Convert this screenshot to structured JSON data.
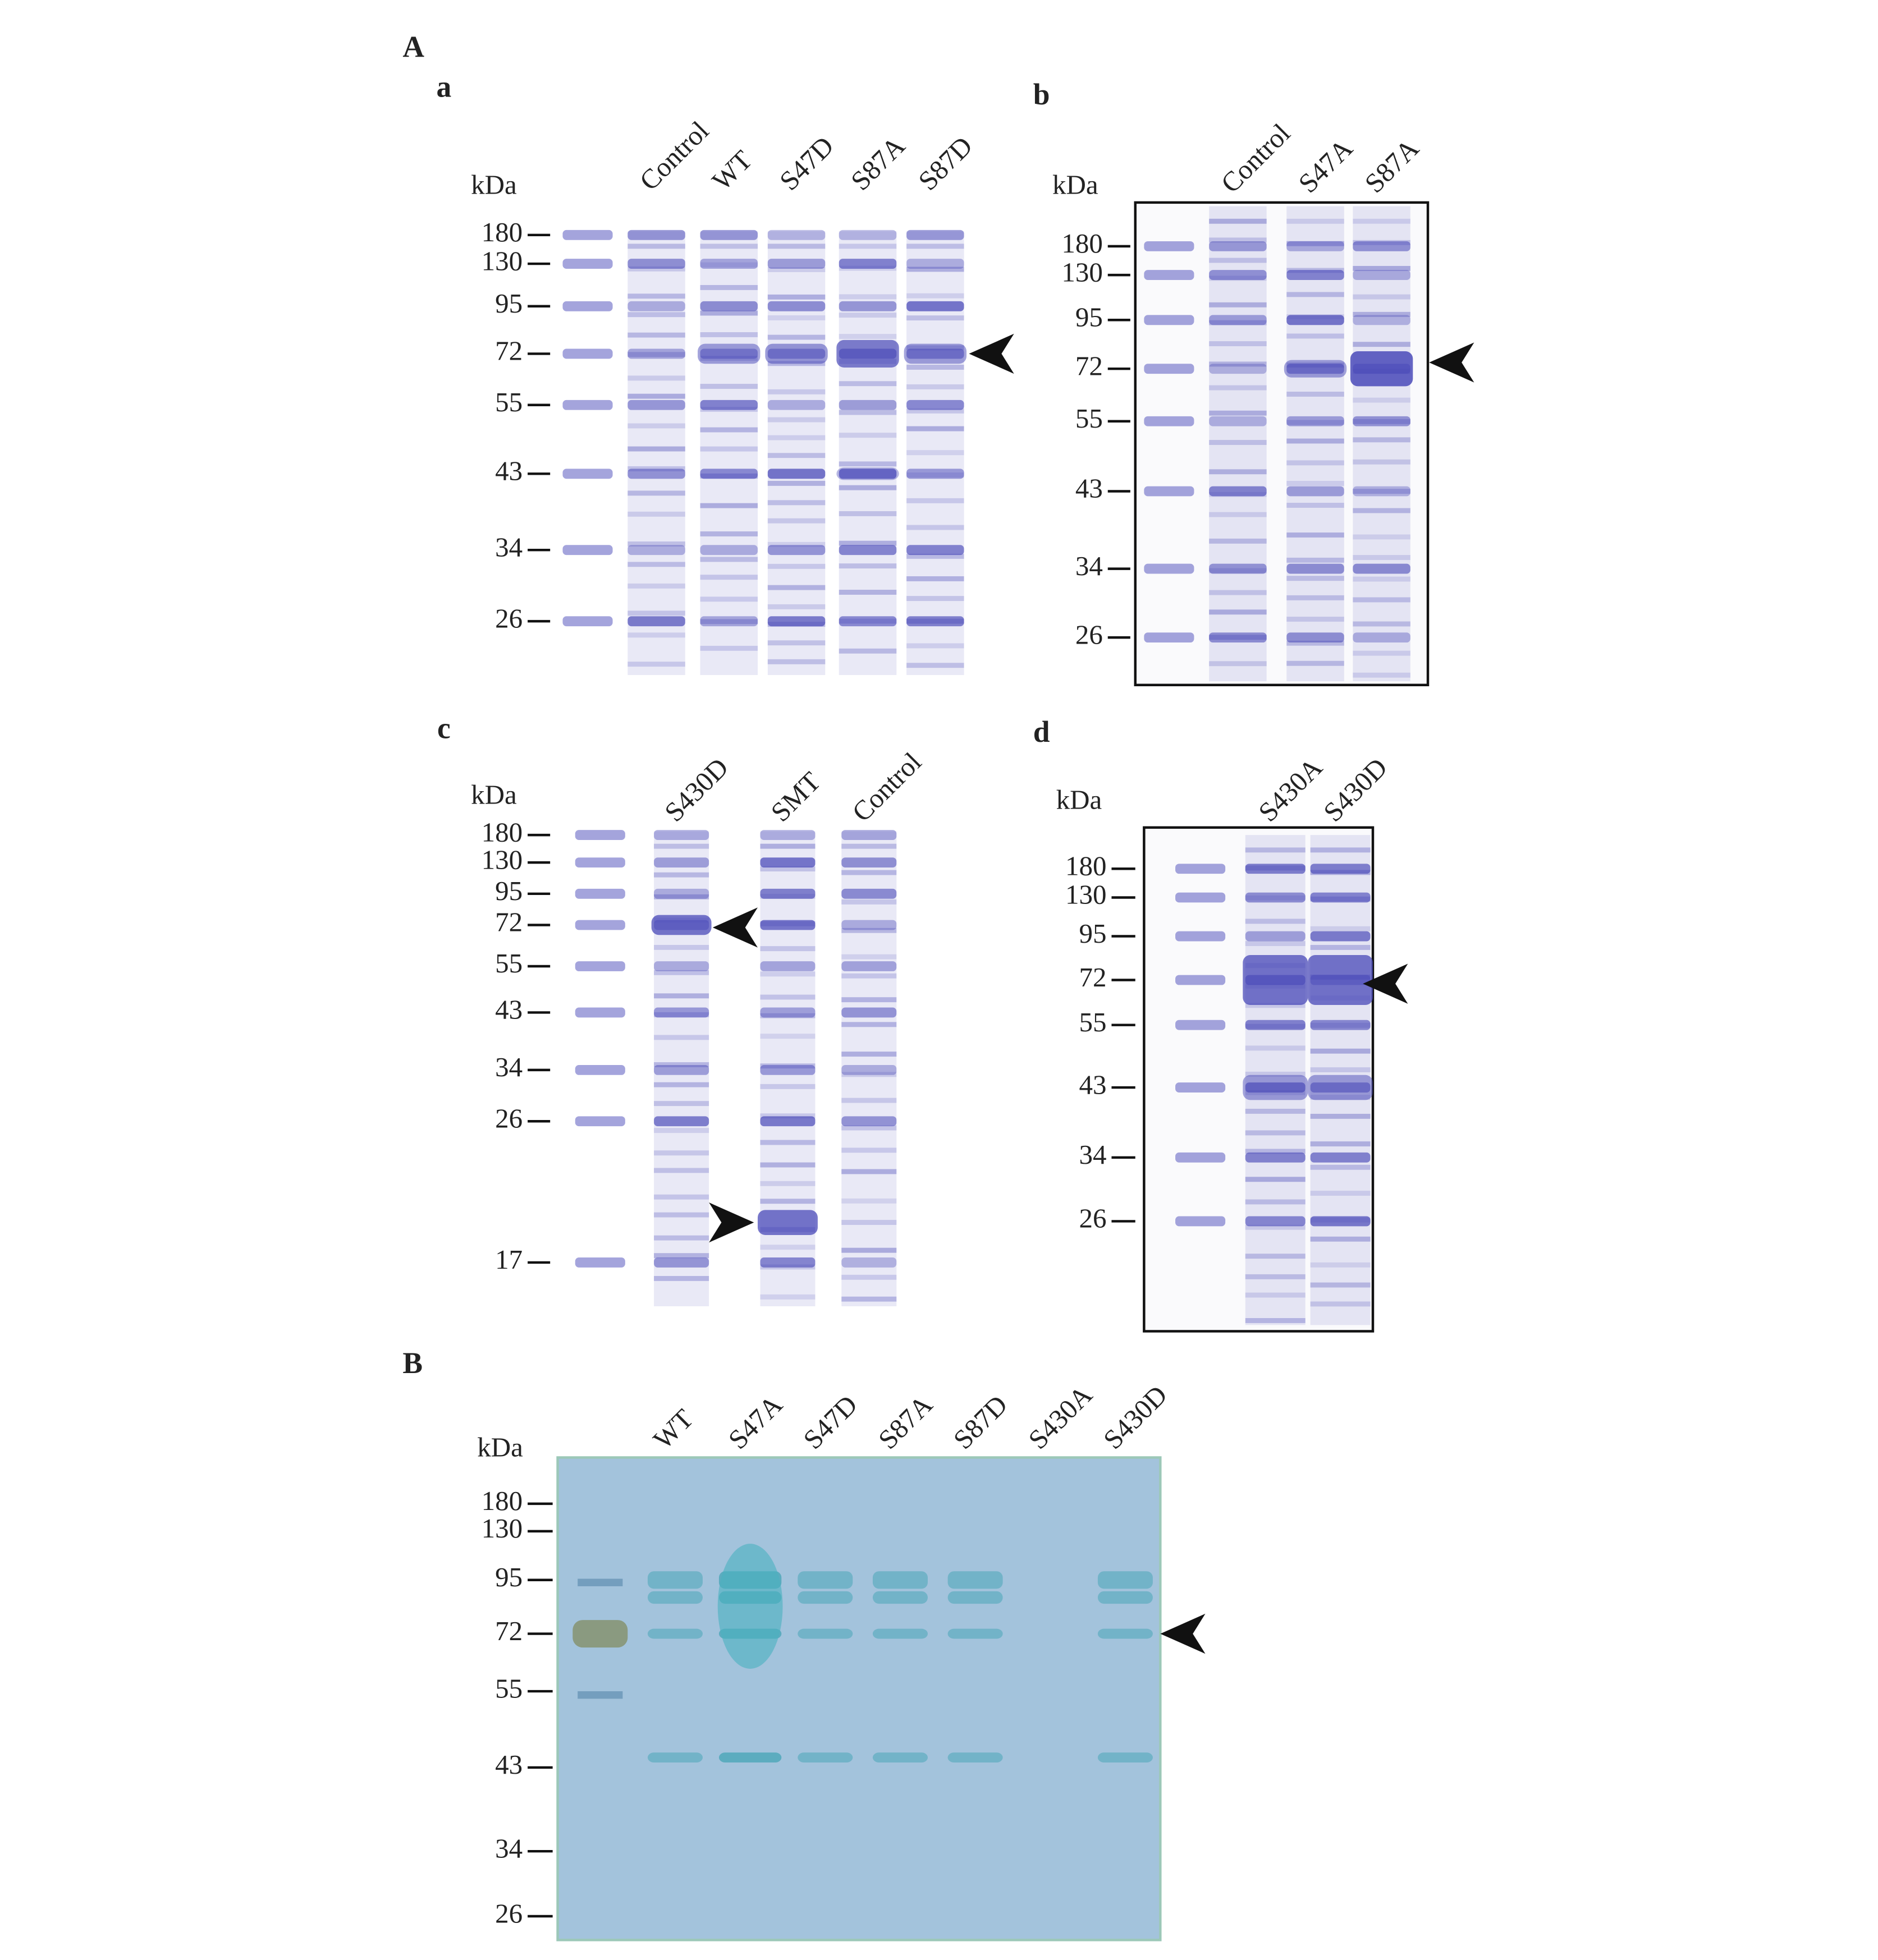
{
  "figure": {
    "part_A": {
      "label": "A",
      "panels": [
        {
          "label": "a",
          "unit": "kDa",
          "markers": [
            180,
            130,
            95,
            72,
            55,
            43,
            34,
            26
          ],
          "lanes": [
            "Control",
            "WT",
            "S47D",
            "S87A",
            "S87D"
          ]
        },
        {
          "label": "b",
          "unit": "kDa",
          "markers": [
            180,
            130,
            95,
            72,
            55,
            43,
            34,
            26
          ],
          "lanes": [
            "Control",
            "S47A",
            "S87A"
          ]
        },
        {
          "label": "c",
          "unit": "kDa",
          "markers": [
            180,
            130,
            95,
            72,
            55,
            43,
            34,
            26,
            17
          ],
          "lanes": [
            "S430D",
            "SMT",
            "Control"
          ]
        },
        {
          "label": "d",
          "unit": "kDa",
          "markers": [
            180,
            130,
            95,
            72,
            55,
            43,
            34,
            26
          ],
          "lanes": [
            "S430A",
            "S430D"
          ]
        }
      ]
    },
    "part_B": {
      "label": "B",
      "unit": "kDa",
      "markers": [
        180,
        130,
        95,
        72,
        55,
        43,
        34,
        26
      ],
      "lanes": [
        "WT",
        "S47A",
        "S47D",
        "S87A",
        "S87D",
        "S430A",
        "S430D"
      ]
    }
  }
}
